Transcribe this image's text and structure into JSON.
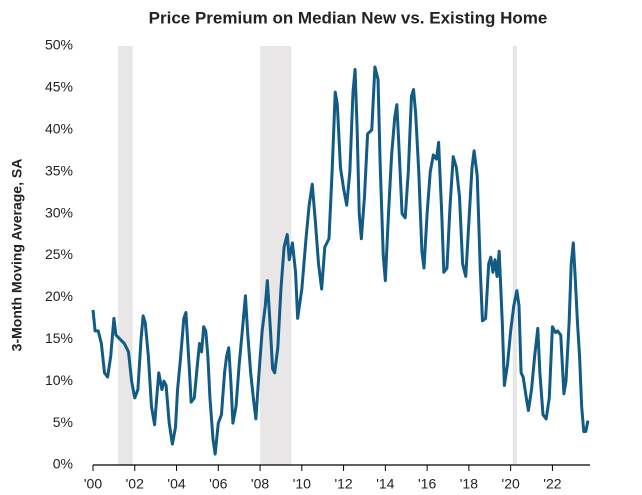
{
  "chart_data": {
    "type": "line",
    "title": "Price Premium on Median New vs. Existing Home",
    "y_label": "3-Month Moving Average, SA",
    "color": "#115b85",
    "shade_color": "#e8e6e6",
    "shaded_periods": [
      [
        2001.2,
        2001.9
      ],
      [
        2008.0,
        2009.5
      ],
      [
        2020.1,
        2020.3
      ]
    ],
    "xlim": [
      2000,
      2023.8
    ],
    "ylim": [
      0,
      50
    ],
    "xticks": [
      {
        "value": 2000,
        "label": "'00"
      },
      {
        "value": 2002,
        "label": "'02"
      },
      {
        "value": 2004,
        "label": "'04"
      },
      {
        "value": 2006,
        "label": "'06"
      },
      {
        "value": 2008,
        "label": "'08"
      },
      {
        "value": 2010,
        "label": "'10"
      },
      {
        "value": 2012,
        "label": "'12"
      },
      {
        "value": 2014,
        "label": "'14"
      },
      {
        "value": 2016,
        "label": "'16"
      },
      {
        "value": 2018,
        "label": "'18"
      },
      {
        "value": 2020,
        "label": "'20"
      },
      {
        "value": 2022,
        "label": "'22"
      }
    ],
    "yticks": [
      {
        "value": 0,
        "label": "0%"
      },
      {
        "value": 5,
        "label": "5%"
      },
      {
        "value": 10,
        "label": "10%"
      },
      {
        "value": 15,
        "label": "15%"
      },
      {
        "value": 20,
        "label": "20%"
      },
      {
        "value": 25,
        "label": "25%"
      },
      {
        "value": 30,
        "label": "30%"
      },
      {
        "value": 35,
        "label": "35%"
      },
      {
        "value": 40,
        "label": "40%"
      },
      {
        "value": 45,
        "label": "45%"
      },
      {
        "value": 50,
        "label": "50%"
      }
    ],
    "x": [
      2000.0,
      2000.1,
      2000.25,
      2000.4,
      2000.55,
      2000.7,
      2000.85,
      2001.0,
      2001.1,
      2001.3,
      2001.5,
      2001.7,
      2001.85,
      2002.0,
      2002.15,
      2002.3,
      2002.4,
      2002.5,
      2002.65,
      2002.8,
      2002.95,
      2003.05,
      2003.15,
      2003.3,
      2003.4,
      2003.5,
      2003.65,
      2003.8,
      2003.95,
      2004.05,
      2004.2,
      2004.35,
      2004.45,
      2004.6,
      2004.7,
      2004.85,
      2005.0,
      2005.1,
      2005.2,
      2005.3,
      2005.4,
      2005.5,
      2005.6,
      2005.75,
      2005.85,
      2006.0,
      2006.15,
      2006.3,
      2006.4,
      2006.5,
      2006.6,
      2006.7,
      2006.85,
      2007.0,
      2007.15,
      2007.3,
      2007.4,
      2007.55,
      2007.7,
      2007.8,
      2007.95,
      2008.1,
      2008.25,
      2008.35,
      2008.5,
      2008.6,
      2008.7,
      2008.85,
      2009.0,
      2009.15,
      2009.3,
      2009.4,
      2009.55,
      2009.7,
      2009.8,
      2010.0,
      2010.2,
      2010.35,
      2010.5,
      2010.65,
      2010.8,
      2010.95,
      2011.1,
      2011.3,
      2011.45,
      2011.6,
      2011.7,
      2011.85,
      2012.0,
      2012.15,
      2012.3,
      2012.45,
      2012.55,
      2012.65,
      2012.75,
      2012.85,
      2013.0,
      2013.15,
      2013.35,
      2013.5,
      2013.65,
      2013.75,
      2013.9,
      2014.0,
      2014.15,
      2014.3,
      2014.45,
      2014.55,
      2014.65,
      2014.8,
      2014.95,
      2015.1,
      2015.25,
      2015.35,
      2015.45,
      2015.6,
      2015.75,
      2015.85,
      2016.0,
      2016.15,
      2016.3,
      2016.45,
      2016.55,
      2016.7,
      2016.8,
      2016.95,
      2017.1,
      2017.25,
      2017.4,
      2017.55,
      2017.7,
      2017.85,
      2018.0,
      2018.15,
      2018.25,
      2018.4,
      2018.55,
      2018.65,
      2018.8,
      2018.95,
      2019.05,
      2019.15,
      2019.25,
      2019.35,
      2019.45,
      2019.6,
      2019.7,
      2019.85,
      2020.0,
      2020.15,
      2020.3,
      2020.4,
      2020.5,
      2020.6,
      2020.75,
      2020.85,
      2021.0,
      2021.15,
      2021.3,
      2021.4,
      2021.55,
      2021.7,
      2021.85,
      2022.0,
      2022.15,
      2022.25,
      2022.4,
      2022.55,
      2022.65,
      2022.8,
      2022.9,
      2023.0,
      2023.1,
      2023.2,
      2023.3,
      2023.4,
      2023.5,
      2023.6,
      2023.7
    ],
    "values": [
      18.5,
      16,
      16,
      14.5,
      11,
      10.5,
      13,
      17.5,
      15.5,
      15,
      14.5,
      13.5,
      10,
      8,
      9,
      15,
      17.8,
      17,
      13,
      7,
      4.8,
      8,
      11,
      9,
      10,
      9.5,
      5,
      2.5,
      4.5,
      9,
      13,
      17.5,
      18.2,
      12,
      7.5,
      8,
      12,
      14.5,
      13.5,
      16.5,
      16,
      13,
      8,
      3,
      1.3,
      5,
      6,
      11,
      13,
      14,
      10,
      5,
      7,
      12,
      16,
      20.2,
      16,
      11,
      7.5,
      5.5,
      11,
      16,
      19,
      22,
      16,
      11.5,
      11,
      14,
      21,
      26,
      27.5,
      24.5,
      26.5,
      23,
      17.5,
      21,
      27,
      31,
      33.5,
      29,
      24,
      21,
      26,
      27,
      35,
      44.5,
      43,
      35.5,
      33,
      31,
      35,
      44.5,
      47.2,
      40,
      30,
      27,
      32,
      39.5,
      40,
      47.5,
      46,
      36,
      25,
      22,
      30,
      37,
      41.5,
      43,
      38,
      30,
      29.5,
      35,
      44,
      44.8,
      42,
      35,
      25.5,
      23.5,
      30,
      35,
      37,
      36.5,
      38.5,
      30,
      23,
      23.5,
      31,
      36.8,
      35.5,
      32,
      24,
      22.5,
      29,
      35.5,
      37.5,
      34.5,
      23,
      17.2,
      17.5,
      24,
      24.8,
      23,
      24.5,
      22.5,
      25.5,
      17,
      9.5,
      12,
      16,
      19,
      20.8,
      19,
      11,
      10.5,
      8,
      6.5,
      9,
      13,
      16.3,
      11,
      6,
      5.5,
      8,
      16.5,
      15.8,
      16,
      15.5,
      8.5,
      10,
      17,
      24,
      26.5,
      22,
      17,
      13,
      7,
      4,
      4,
      5.3
    ]
  }
}
